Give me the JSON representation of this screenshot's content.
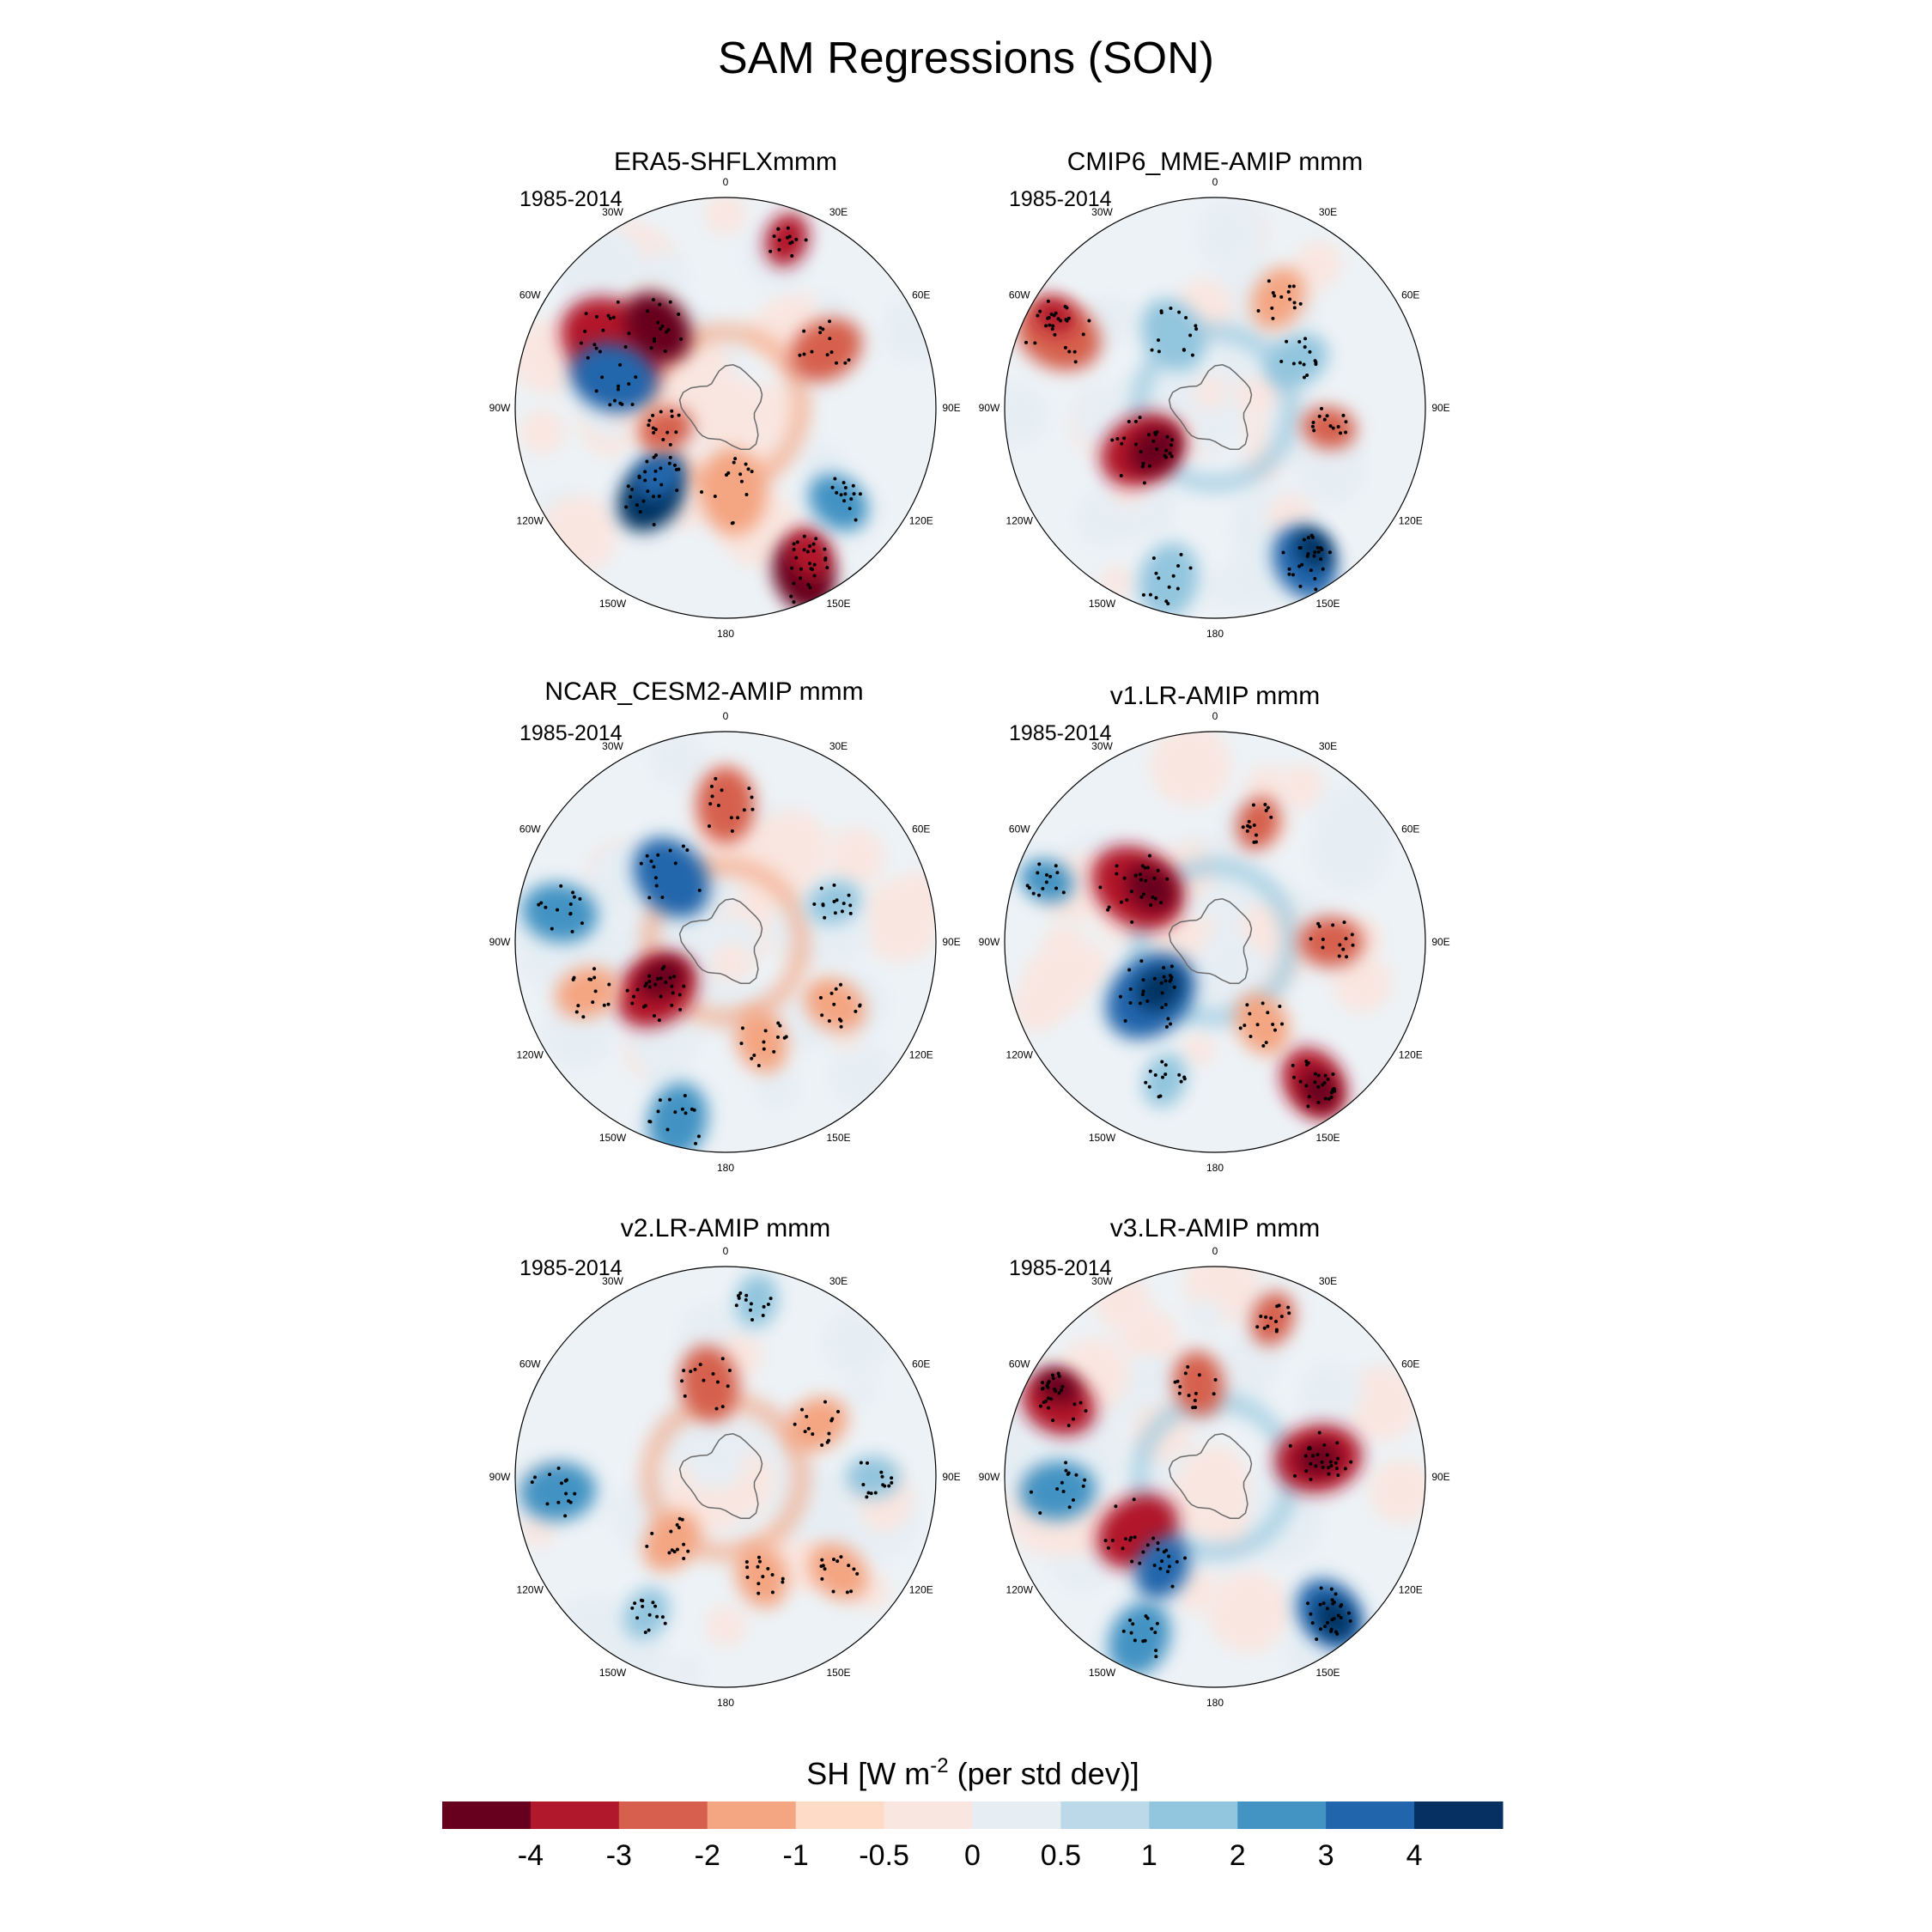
{
  "chart_data": {
    "type": "polar-map-panel",
    "title": "SAM Regressions (SON)",
    "panels": [
      {
        "title": "ERA5-SHFLXmmm",
        "period": "1985-2014"
      },
      {
        "title": "CMIP6_MME-AMIP  mmm",
        "period": "1985-2014"
      },
      {
        "title": "NCAR_CESM2-AMIP  mmm",
        "period": "1985-2014"
      },
      {
        "title": "v1.LR-AMIP  mmm",
        "period": "1985-2014"
      },
      {
        "title": "v2.LR-AMIP  mmm",
        "period": "1985-2014"
      },
      {
        "title": "v3.LR-AMIP  mmm",
        "period": "1985-2014"
      }
    ],
    "longitude_labels": [
      "0",
      "30E",
      "60E",
      "90E",
      "120E",
      "150E",
      "180",
      "150W",
      "120W",
      "90W",
      "60W",
      "30W"
    ],
    "colorbar": {
      "label_prefix": "SH [W m",
      "label_exp": "-2",
      "label_suffix": " (per std dev)]",
      "levels": [
        "-4",
        "-3",
        "-2",
        "-1",
        "-0.5",
        "0",
        "0.5",
        "1",
        "2",
        "3",
        "4"
      ],
      "colors": [
        "#67001f",
        "#b2182b",
        "#d6604d",
        "#f4a582",
        "#fddbc7",
        "#f9e6e0",
        "#e6eef4",
        "#bcd9ea",
        "#92c5de",
        "#4393c3",
        "#2166ac",
        "#053061"
      ]
    }
  }
}
